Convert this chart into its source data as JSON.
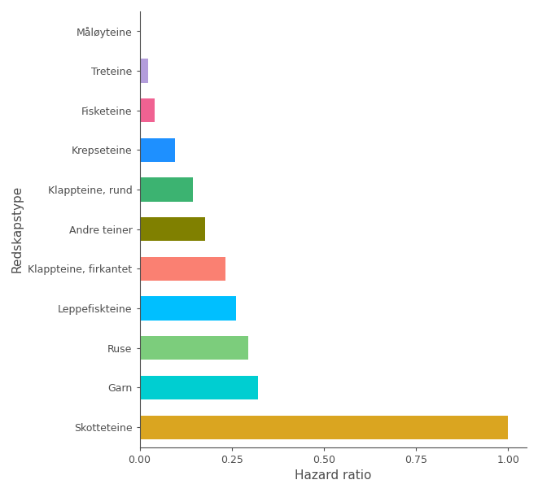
{
  "categories": [
    "Måløyteine",
    "Treteine",
    "Fisketeine",
    "Krepseteine",
    "Klappteine, rund",
    "Andre teiner",
    "Klappteine, firkantet",
    "Leppefiskteine",
    "Ruse",
    "Garn",
    "Skotteteine"
  ],
  "values": [
    0.002,
    0.022,
    0.04,
    0.095,
    0.145,
    0.178,
    0.232,
    0.262,
    0.295,
    0.322,
    1.0
  ],
  "colors": [
    "#FFFFFF",
    "#B39DDB",
    "#F06292",
    "#1E90FF",
    "#3CB371",
    "#808000",
    "#FA8072",
    "#00BFFF",
    "#7CCD7C",
    "#00CED1",
    "#DAA520"
  ],
  "xlabel": "Hazard ratio",
  "ylabel": "Redskapstype",
  "xlim": [
    0,
    1.05
  ],
  "xticks": [
    0.0,
    0.25,
    0.5,
    0.75,
    1.0
  ],
  "xtick_labels": [
    "0.00",
    "0.25",
    "0.50",
    "0.75",
    "1.00"
  ],
  "bar_height": 0.6,
  "background_color": "#FFFFFF",
  "text_color": "#4D4D4D",
  "axis_color": "#4D4D4D",
  "grid_color": "#D3D3D3",
  "tick_label_fontsize": 9,
  "axis_label_fontsize": 11
}
